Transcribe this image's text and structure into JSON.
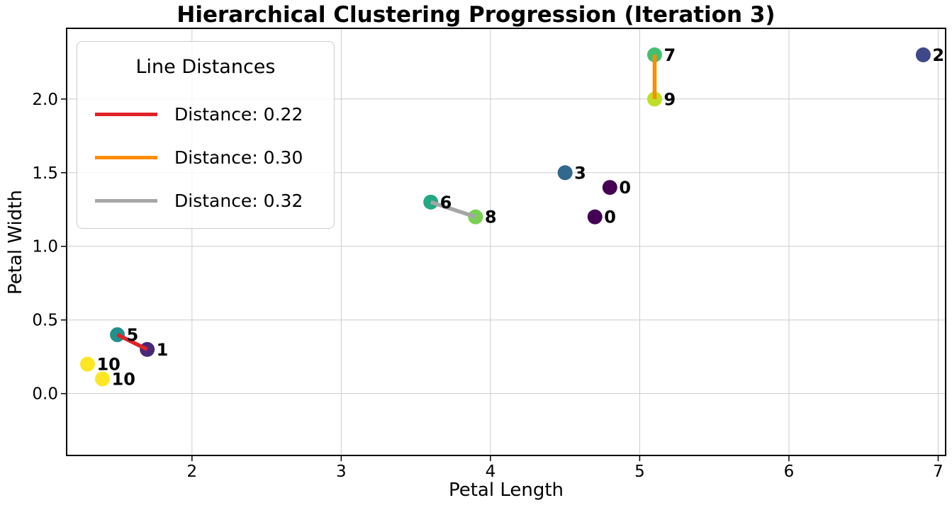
{
  "chart_data": {
    "type": "scatter",
    "title": "Hierarchical Clustering Progression (Iteration 3)",
    "xlabel": "Petal Length",
    "ylabel": "Petal Width",
    "xlim": [
      1.16,
      7.05
    ],
    "ylim": [
      -0.42,
      2.48
    ],
    "xticks": [
      "2",
      "3",
      "4",
      "5",
      "6",
      "7"
    ],
    "xtick_values": [
      2,
      3,
      4,
      5,
      6,
      7
    ],
    "yticks": [
      "0.0",
      "0.5",
      "1.0",
      "1.5",
      "2.0"
    ],
    "ytick_values": [
      0,
      0.5,
      1,
      1.5,
      2
    ],
    "grid": true,
    "grid_color": "#cccccc",
    "points": [
      {
        "id": "0",
        "x": 4.8,
        "y": 1.4,
        "color": "#440154"
      },
      {
        "id": "0",
        "x": 4.7,
        "y": 1.2,
        "color": "#440154"
      },
      {
        "id": "1",
        "x": 1.7,
        "y": 0.3,
        "color": "#482878"
      },
      {
        "id": "2",
        "x": 6.9,
        "y": 2.3,
        "color": "#3e4989"
      },
      {
        "id": "3",
        "x": 4.5,
        "y": 1.5,
        "color": "#31688e"
      },
      {
        "id": "5",
        "x": 1.5,
        "y": 0.4,
        "color": "#21918c"
      },
      {
        "id": "6",
        "x": 3.6,
        "y": 1.3,
        "color": "#22a884"
      },
      {
        "id": "7",
        "x": 5.1,
        "y": 2.3,
        "color": "#44bf70"
      },
      {
        "id": "8",
        "x": 3.9,
        "y": 1.2,
        "color": "#7ad151"
      },
      {
        "id": "9",
        "x": 5.1,
        "y": 2.0,
        "color": "#bddf26"
      },
      {
        "id": "10",
        "x": 1.3,
        "y": 0.2,
        "color": "#fde725"
      },
      {
        "id": "10",
        "x": 1.4,
        "y": 0.1,
        "color": "#fde725"
      }
    ],
    "lines": [
      {
        "x1": 1.5,
        "y1": 0.4,
        "x2": 1.7,
        "y2": 0.3,
        "color": "#e02227",
        "distance": "0.22"
      },
      {
        "x1": 5.1,
        "y1": 2.3,
        "x2": 5.1,
        "y2": 2.0,
        "color": "#ff8c00",
        "distance": "0.30"
      },
      {
        "x1": 3.6,
        "y1": 1.3,
        "x2": 3.9,
        "y2": 1.2,
        "color": "#a6a6a6",
        "distance": "0.32"
      }
    ],
    "legend": {
      "title": "Line Distances",
      "position": "upper left",
      "entries": [
        {
          "label": "Distance: 0.22",
          "color": "#e02227"
        },
        {
          "label": "Distance: 0.30",
          "color": "#ff8c00"
        },
        {
          "label": "Distance: 0.32",
          "color": "#a6a6a6"
        }
      ]
    }
  }
}
